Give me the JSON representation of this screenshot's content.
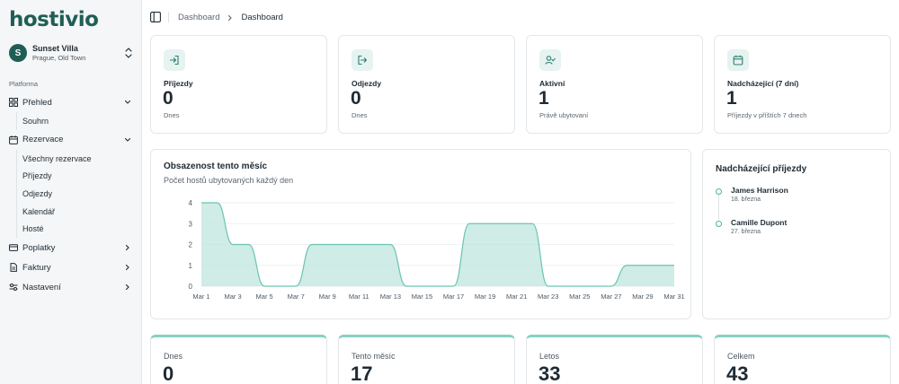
{
  "brand": "hostivio",
  "property": {
    "initial": "S",
    "name": "Sunset Villa",
    "location": "Prague, Old Town"
  },
  "sidebar": {
    "section_label": "Platforma",
    "items": [
      {
        "label": "Přehled",
        "icon": "grid-icon",
        "expanded": true,
        "children": [
          "Souhrn"
        ]
      },
      {
        "label": "Rezervace",
        "icon": "calendar-icon",
        "expanded": true,
        "children": [
          "Všechny rezervace",
          "Příjezdy",
          "Odjezdy",
          "Kalendář",
          "Hosté"
        ]
      },
      {
        "label": "Poplatky",
        "icon": "card-icon",
        "expanded": false
      },
      {
        "label": "Faktury",
        "icon": "document-icon",
        "expanded": false
      },
      {
        "label": "Nastavení",
        "icon": "sliders-icon",
        "expanded": false
      }
    ]
  },
  "breadcrumb": {
    "parent": "Dashboard",
    "current": "Dashboard"
  },
  "stats": [
    {
      "icon": "login-icon",
      "label": "Příjezdy",
      "value": "0",
      "sub": "Dnes"
    },
    {
      "icon": "logout-icon",
      "label": "Odjezdy",
      "value": "0",
      "sub": "Dnes"
    },
    {
      "icon": "user-check-icon",
      "label": "Aktivní",
      "value": "1",
      "sub": "Právě ubytovaní"
    },
    {
      "icon": "calendar-icon",
      "label": "Nadcházející (7 dní)",
      "value": "1",
      "sub": "Příjezdy v příštích 7 dnech"
    }
  ],
  "occupancy": {
    "title": "Obsazenost tento měsíc",
    "subtitle": "Počet hostů ubytovaných každý den"
  },
  "chart_data": {
    "type": "area",
    "title": "Obsazenost tento měsíc",
    "subtitle": "Počet hostů ubytovaných každý den",
    "x_ticks": [
      "Mar 1",
      "Mar 3",
      "Mar 5",
      "Mar 7",
      "Mar 9",
      "Mar 11",
      "Mar 13",
      "Mar 15",
      "Mar 17",
      "Mar 19",
      "Mar 21",
      "Mar 23",
      "Mar 25",
      "Mar 27",
      "Mar 29",
      "Mar 31"
    ],
    "x": [
      1,
      2,
      3,
      4,
      5,
      6,
      7,
      8,
      9,
      10,
      11,
      12,
      13,
      14,
      15,
      16,
      17,
      18,
      19,
      20,
      21,
      22,
      23,
      24,
      25,
      26,
      27,
      28,
      29,
      30,
      31
    ],
    "values": [
      4,
      4,
      2,
      2,
      0,
      0,
      0,
      2,
      2,
      2,
      2,
      2,
      2,
      0,
      0,
      0,
      0,
      3,
      3,
      3,
      3,
      3,
      0,
      0,
      0,
      0,
      0,
      1,
      1,
      1,
      1
    ],
    "y_ticks": [
      0,
      1,
      2,
      3,
      4
    ],
    "ylim": [
      0,
      4
    ],
    "xlim": [
      1,
      31
    ],
    "grid": true,
    "color": "#bfe6dd",
    "line_color": "#6cc3b3"
  },
  "upcoming": {
    "title": "Nadcházející příjezdy",
    "guests": [
      {
        "name": "James Harrison",
        "date": "18. března"
      },
      {
        "name": "Camille Dupont",
        "date": "27. března"
      }
    ]
  },
  "bottom_stats": [
    {
      "label": "Dnes",
      "value": "0"
    },
    {
      "label": "Tento měsíc",
      "value": "17"
    },
    {
      "label": "Letos",
      "value": "33"
    },
    {
      "label": "Celkem",
      "value": "43"
    }
  ]
}
